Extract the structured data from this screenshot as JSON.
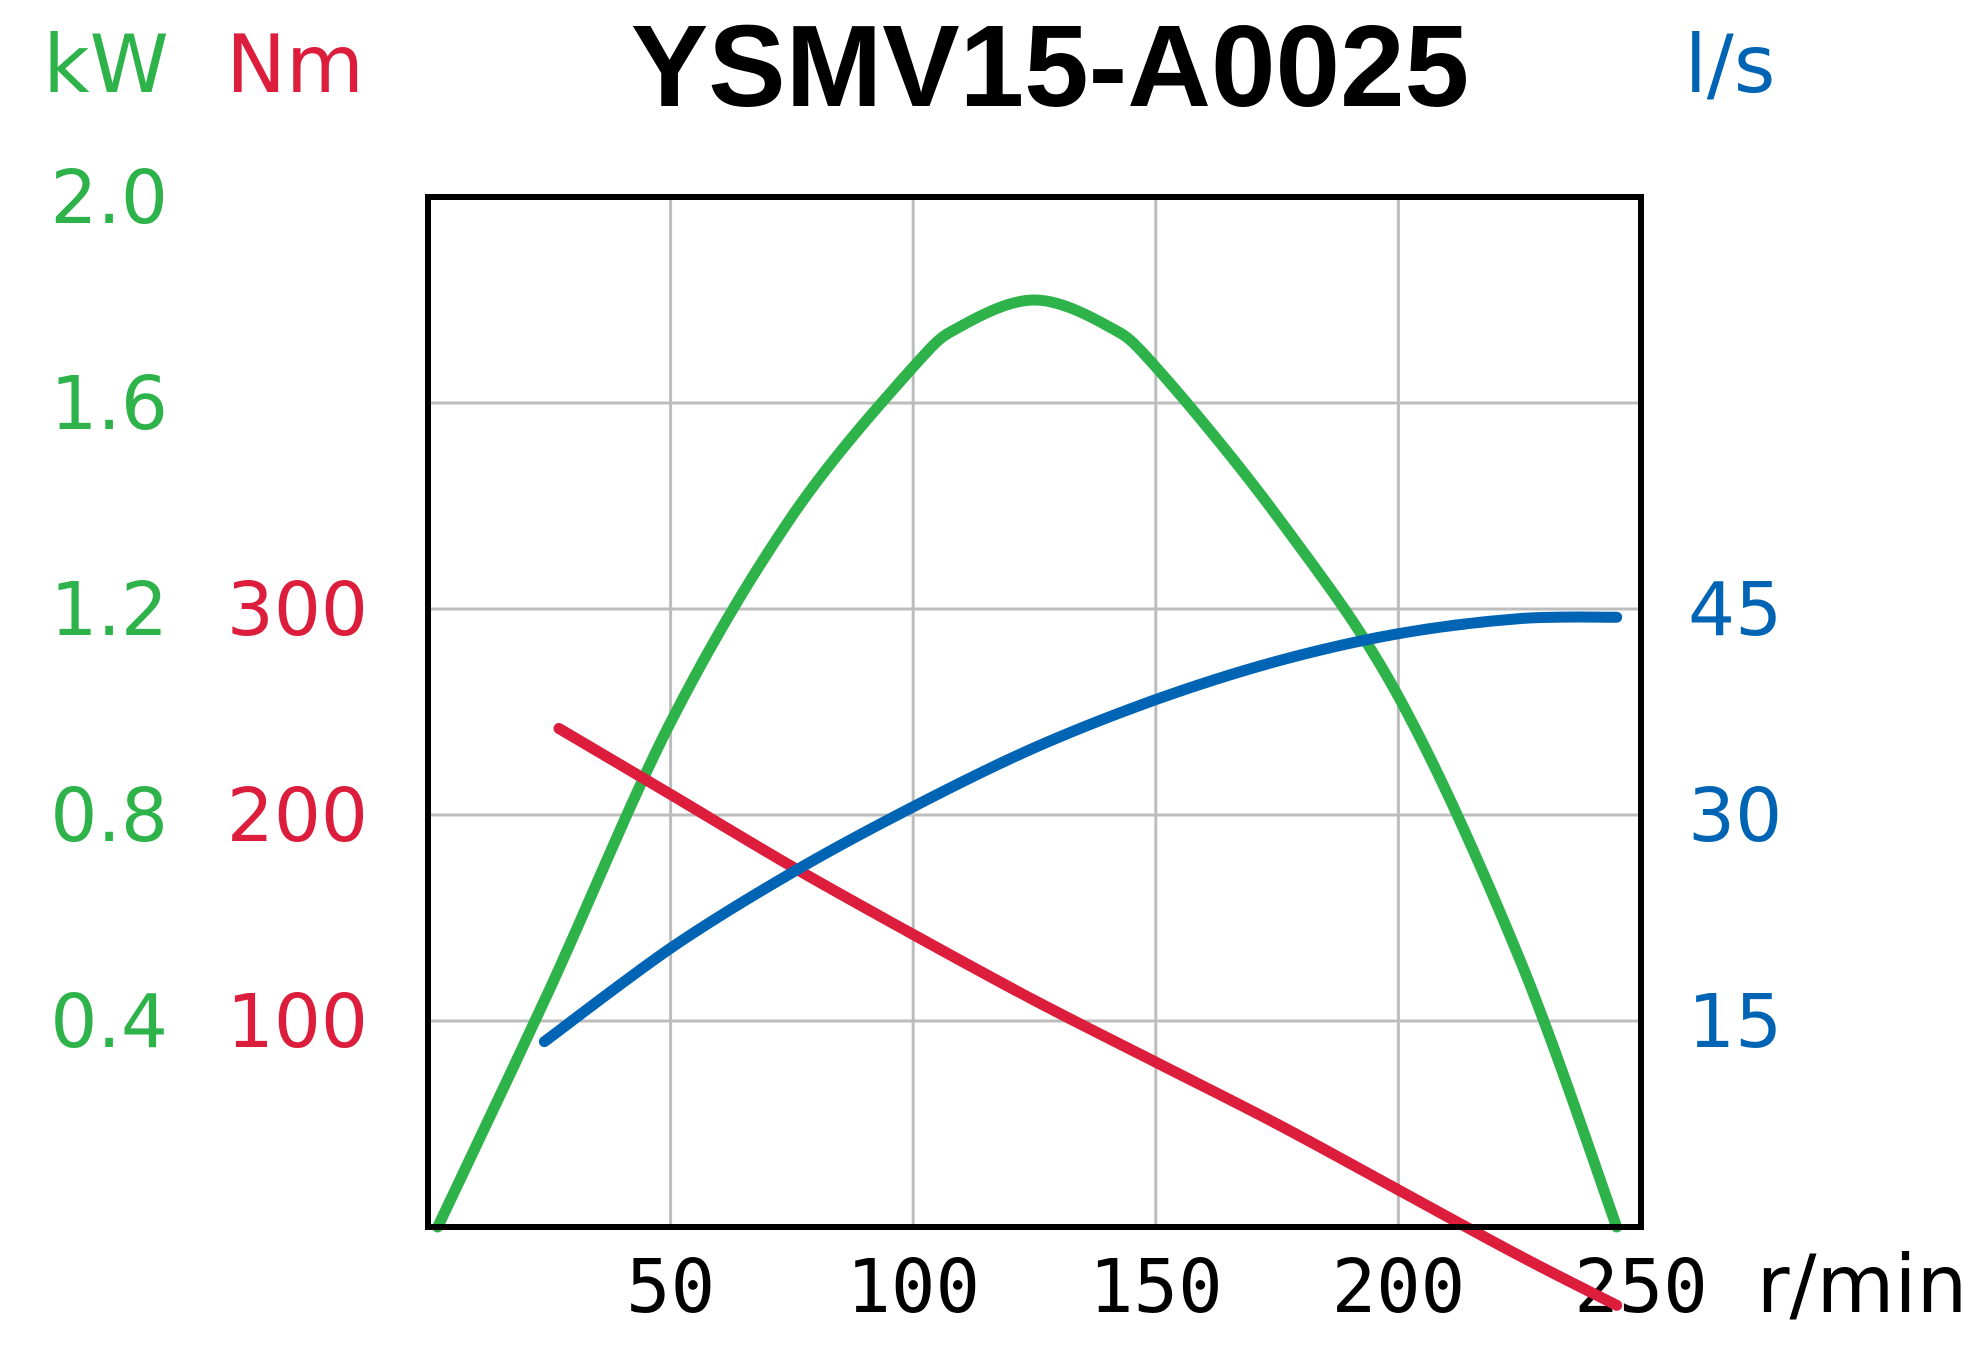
{
  "chart_data": {
    "type": "line",
    "title": "YSMV15-A0025",
    "xlabel": "r/min",
    "xlim": [
      0,
      250
    ],
    "x_ticks": [
      "50",
      "100",
      "150",
      "200",
      "250"
    ],
    "grid": true,
    "axes": {
      "power": {
        "unit": "kW",
        "ylim": [
          0,
          2.0
        ],
        "ticks": [
          "0.4",
          "0.8",
          "1.2",
          "1.6",
          "2.0"
        ],
        "tick_values": [
          0.4,
          0.8,
          1.2,
          1.6,
          2.0
        ]
      },
      "torque": {
        "unit": "Nm",
        "ylim": [
          0,
          500
        ],
        "ticks": [
          "100",
          "200",
          "300"
        ],
        "tick_values": [
          100,
          200,
          300
        ]
      },
      "flow": {
        "unit": "l/s",
        "ylim": [
          0,
          75
        ],
        "ticks": [
          "15",
          "30",
          "45"
        ],
        "tick_values": [
          15,
          30,
          45
        ]
      }
    },
    "series": [
      {
        "axis": "power",
        "color": "#2eb34a",
        "x": [
          2,
          25,
          50,
          75,
          100,
          110,
          125,
          140,
          150,
          175,
          200,
          225,
          245
        ],
        "y": [
          0,
          0.46,
          0.98,
          1.38,
          1.67,
          1.75,
          1.8,
          1.75,
          1.67,
          1.38,
          1.03,
          0.52,
          0
        ]
      },
      {
        "axis": "torque",
        "color": "#dc1e3c",
        "x": [
          27,
          50,
          75,
          100,
          125,
          150,
          175,
          200,
          225,
          245
        ],
        "y": [
          242,
          210,
          175,
          142,
          110,
          80,
          50,
          18,
          -14,
          -38
        ]
      },
      {
        "axis": "flow",
        "color": "#0064b4",
        "x": [
          24,
          50,
          75,
          100,
          125,
          150,
          175,
          200,
          225,
          245
        ],
        "y": [
          13.5,
          20.3,
          25.8,
          30.6,
          34.9,
          38.4,
          41.2,
          43.2,
          44.3,
          44.4
        ]
      }
    ]
  }
}
